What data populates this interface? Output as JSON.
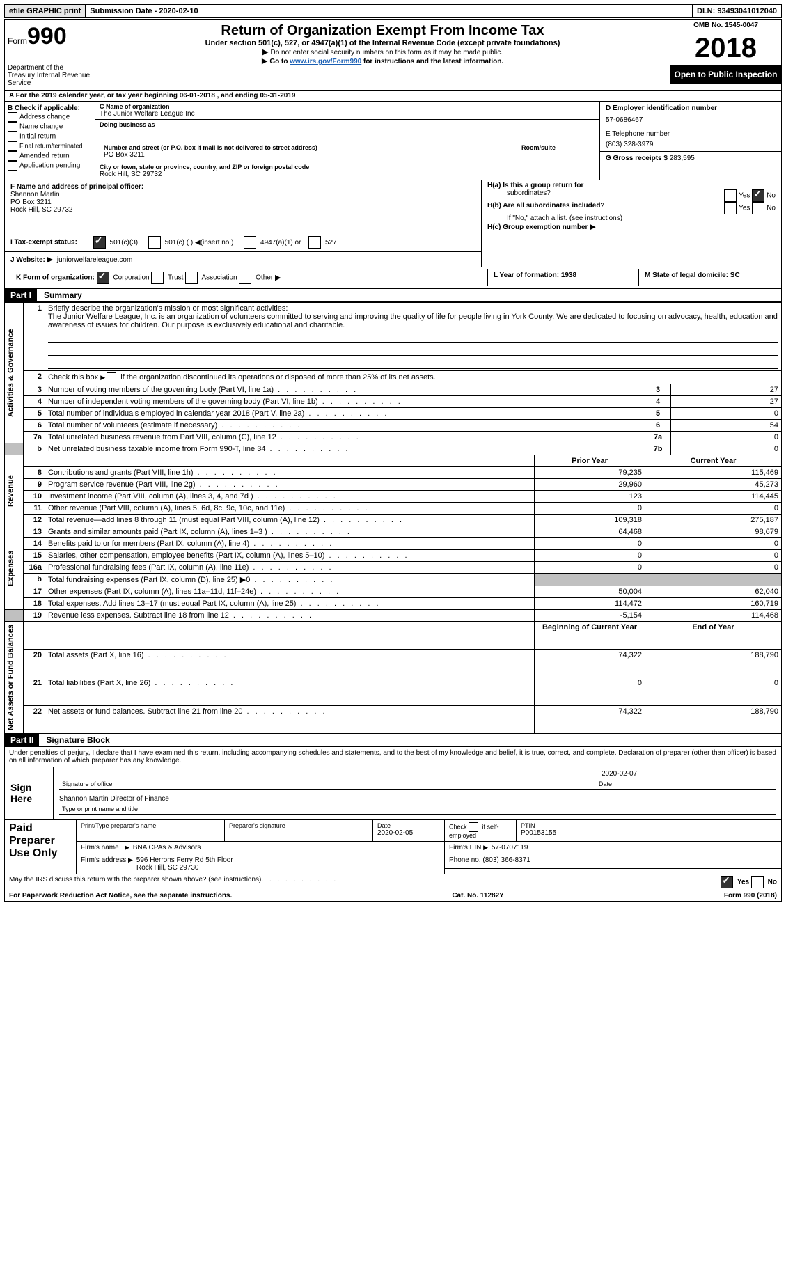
{
  "topbar": {
    "efile": "efile GRAPHIC print",
    "submission": "Submission Date - 2020-02-10",
    "dln": "DLN: 93493041012040"
  },
  "header": {
    "form": "Form",
    "formnum": "990",
    "dept": "Department of the Treasury\nInternal Revenue Service",
    "title": "Return of Organization Exempt From Income Tax",
    "subtitle": "Under section 501(c), 527, or 4947(a)(1) of the Internal Revenue Code (except private foundations)",
    "line1": "Do not enter social security numbers on this form as it may be made public.",
    "line2a": "Go to ",
    "line2link": "www.irs.gov/Form990",
    "line2b": " for instructions and the latest information.",
    "omb": "OMB No. 1545-0047",
    "year": "2018",
    "inspection": "Open to Public Inspection"
  },
  "rowA": "A For the 2019 calendar year, or tax year beginning 06-01-2018    , and ending 05-31-2019",
  "boxB": {
    "label": "B Check if applicable:",
    "items": [
      "Address change",
      "Name change",
      "Initial return",
      "Final return/terminated",
      "Amended return",
      "Application pending"
    ]
  },
  "boxC": {
    "name_label": "C Name of organization",
    "name": "The Junior Welfare League Inc",
    "dba_label": "Doing business as",
    "addr_label": "Number and street (or P.O. box if mail is not delivered to street address)",
    "addr": "PO Box 3211",
    "room_label": "Room/suite",
    "city_label": "City or town, state or province, country, and ZIP or foreign postal code",
    "city": "Rock Hill, SC  29732"
  },
  "boxD": {
    "ein_label": "D Employer identification number",
    "ein": "57-0686467",
    "phone_label": "E Telephone number",
    "phone": "(803) 328-3979",
    "gross_label": "G Gross receipts $",
    "gross": "283,595"
  },
  "boxF": {
    "label": "F  Name and address of principal officer:",
    "name": "Shannon Martin",
    "addr1": "PO Box 3211",
    "addr2": "Rock Hill, SC  29732"
  },
  "boxH": {
    "ha": "H(a)  Is this a group return for",
    "ha2": "subordinates?",
    "hb": "H(b)  Are all subordinates included?",
    "hb_note": "If \"No,\" attach a list. (see instructions)",
    "hc": "H(c)  Group exemption number",
    "yes": "Yes",
    "no": "No"
  },
  "rowI": {
    "label": "I  Tax-exempt status:",
    "opts": [
      "501(c)(3)",
      "501(c) (  )",
      "(insert no.)",
      "4947(a)(1) or",
      "527"
    ]
  },
  "rowJ": {
    "label": "J  Website:",
    "value": "juniorwelfareleague.com"
  },
  "rowK": {
    "label": "K Form of organization:",
    "opts": [
      "Corporation",
      "Trust",
      "Association",
      "Other"
    ]
  },
  "rowL": {
    "l": "L Year of formation: 1938",
    "m": "M State of legal domicile: SC"
  },
  "parts": {
    "p1": "Part I",
    "p1_title": "Summary",
    "p2": "Part II",
    "p2_title": "Signature Block"
  },
  "summary": {
    "q1_label": "Briefly describe the organization's mission or most significant activities:",
    "q1_text": "The Junior Welfare League, Inc. is an organization of volunteers committed to serving and improving the quality of life for people living in York County. We are dedicated to focusing on advocacy, health, education and awareness of issues for children. Our purpose is exclusively educational and charitable.",
    "q2": "Check this box",
    "q2b": "if the organization discontinued its operations or disposed of more than 25% of its net assets.",
    "lines": [
      {
        "n": "3",
        "t": "Number of voting members of the governing body (Part VI, line 1a)",
        "k": "3",
        "v": "27"
      },
      {
        "n": "4",
        "t": "Number of independent voting members of the governing body (Part VI, line 1b)",
        "k": "4",
        "v": "27"
      },
      {
        "n": "5",
        "t": "Total number of individuals employed in calendar year 2018 (Part V, line 2a)",
        "k": "5",
        "v": "0"
      },
      {
        "n": "6",
        "t": "Total number of volunteers (estimate if necessary)",
        "k": "6",
        "v": "54"
      },
      {
        "n": "7a",
        "t": "Total unrelated business revenue from Part VIII, column (C), line 12",
        "k": "7a",
        "v": "0"
      },
      {
        "n": "b",
        "t": "Net unrelated business taxable income from Form 990-T, line 34",
        "k": "7b",
        "v": "0"
      }
    ],
    "col_prior": "Prior Year",
    "col_current": "Current Year",
    "col_begin": "Beginning of Current Year",
    "col_end": "End of Year",
    "vlabels": {
      "gov": "Activities & Governance",
      "rev": "Revenue",
      "exp": "Expenses",
      "net": "Net Assets or Fund Balances"
    },
    "revenue": [
      {
        "n": "8",
        "t": "Contributions and grants (Part VIII, line 1h)",
        "p": "79,235",
        "c": "115,469"
      },
      {
        "n": "9",
        "t": "Program service revenue (Part VIII, line 2g)",
        "p": "29,960",
        "c": "45,273"
      },
      {
        "n": "10",
        "t": "Investment income (Part VIII, column (A), lines 3, 4, and 7d )",
        "p": "123",
        "c": "114,445"
      },
      {
        "n": "11",
        "t": "Other revenue (Part VIII, column (A), lines 5, 6d, 8c, 9c, 10c, and 11e)",
        "p": "0",
        "c": "0"
      },
      {
        "n": "12",
        "t": "Total revenue—add lines 8 through 11 (must equal Part VIII, column (A), line 12)",
        "p": "109,318",
        "c": "275,187"
      }
    ],
    "expenses": [
      {
        "n": "13",
        "t": "Grants and similar amounts paid (Part IX, column (A), lines 1–3 )",
        "p": "64,468",
        "c": "98,679"
      },
      {
        "n": "14",
        "t": "Benefits paid to or for members (Part IX, column (A), line 4)",
        "p": "0",
        "c": "0"
      },
      {
        "n": "15",
        "t": "Salaries, other compensation, employee benefits (Part IX, column (A), lines 5–10)",
        "p": "0",
        "c": "0"
      },
      {
        "n": "16a",
        "t": "Professional fundraising fees (Part IX, column (A), line 11e)",
        "p": "0",
        "c": "0"
      },
      {
        "n": "b",
        "t": "Total fundraising expenses (Part IX, column (D), line 25) ▶0",
        "p": "",
        "c": "",
        "grey": true
      },
      {
        "n": "17",
        "t": "Other expenses (Part IX, column (A), lines 11a–11d, 11f–24e)",
        "p": "50,004",
        "c": "62,040"
      },
      {
        "n": "18",
        "t": "Total expenses. Add lines 13–17 (must equal Part IX, column (A), line 25)",
        "p": "114,472",
        "c": "160,719"
      },
      {
        "n": "19",
        "t": "Revenue less expenses. Subtract line 18 from line 12",
        "p": "-5,154",
        "c": "114,468"
      }
    ],
    "netassets": [
      {
        "n": "20",
        "t": "Total assets (Part X, line 16)",
        "p": "74,322",
        "c": "188,790"
      },
      {
        "n": "21",
        "t": "Total liabilities (Part X, line 26)",
        "p": "0",
        "c": "0"
      },
      {
        "n": "22",
        "t": "Net assets or fund balances. Subtract line 21 from line 20",
        "p": "74,322",
        "c": "188,790"
      }
    ]
  },
  "sig": {
    "penalty": "Under penalties of perjury, I declare that I have examined this return, including accompanying schedules and statements, and to the best of my knowledge and belief, it is true, correct, and complete. Declaration of preparer (other than officer) is based on all information of which preparer has any knowledge.",
    "sign_here": "Sign Here",
    "sig_officer": "Signature of officer",
    "sig_date": "2020-02-07",
    "date_label": "Date",
    "name_title": "Shannon Martin  Director of Finance",
    "name_title_label": "Type or print name and title"
  },
  "preparer": {
    "label": "Paid Preparer Use Only",
    "h1": "Print/Type preparer's name",
    "h2": "Preparer's signature",
    "h3": "Date",
    "h3v": "2020-02-05",
    "h4": "Check",
    "h4b": "if self-employed",
    "h5": "PTIN",
    "h5v": "P00153155",
    "firm_label": "Firm's name",
    "firm": "BNA CPAs & Advisors",
    "ein_label": "Firm's EIN",
    "ein": "57-0707119",
    "addr_label": "Firm's address",
    "addr": "596 Herrons Ferry Rd 5th Floor",
    "addr2": "Rock Hill, SC  29730",
    "phone_label": "Phone no.",
    "phone": "(803) 366-8371"
  },
  "footer": {
    "discuss": "May the IRS discuss this return with the preparer shown above? (see instructions)",
    "yes": "Yes",
    "no": "No",
    "paperwork": "For Paperwork Reduction Act Notice, see the separate instructions.",
    "catno": "Cat. No. 11282Y",
    "formno": "Form 990 (2018)"
  }
}
